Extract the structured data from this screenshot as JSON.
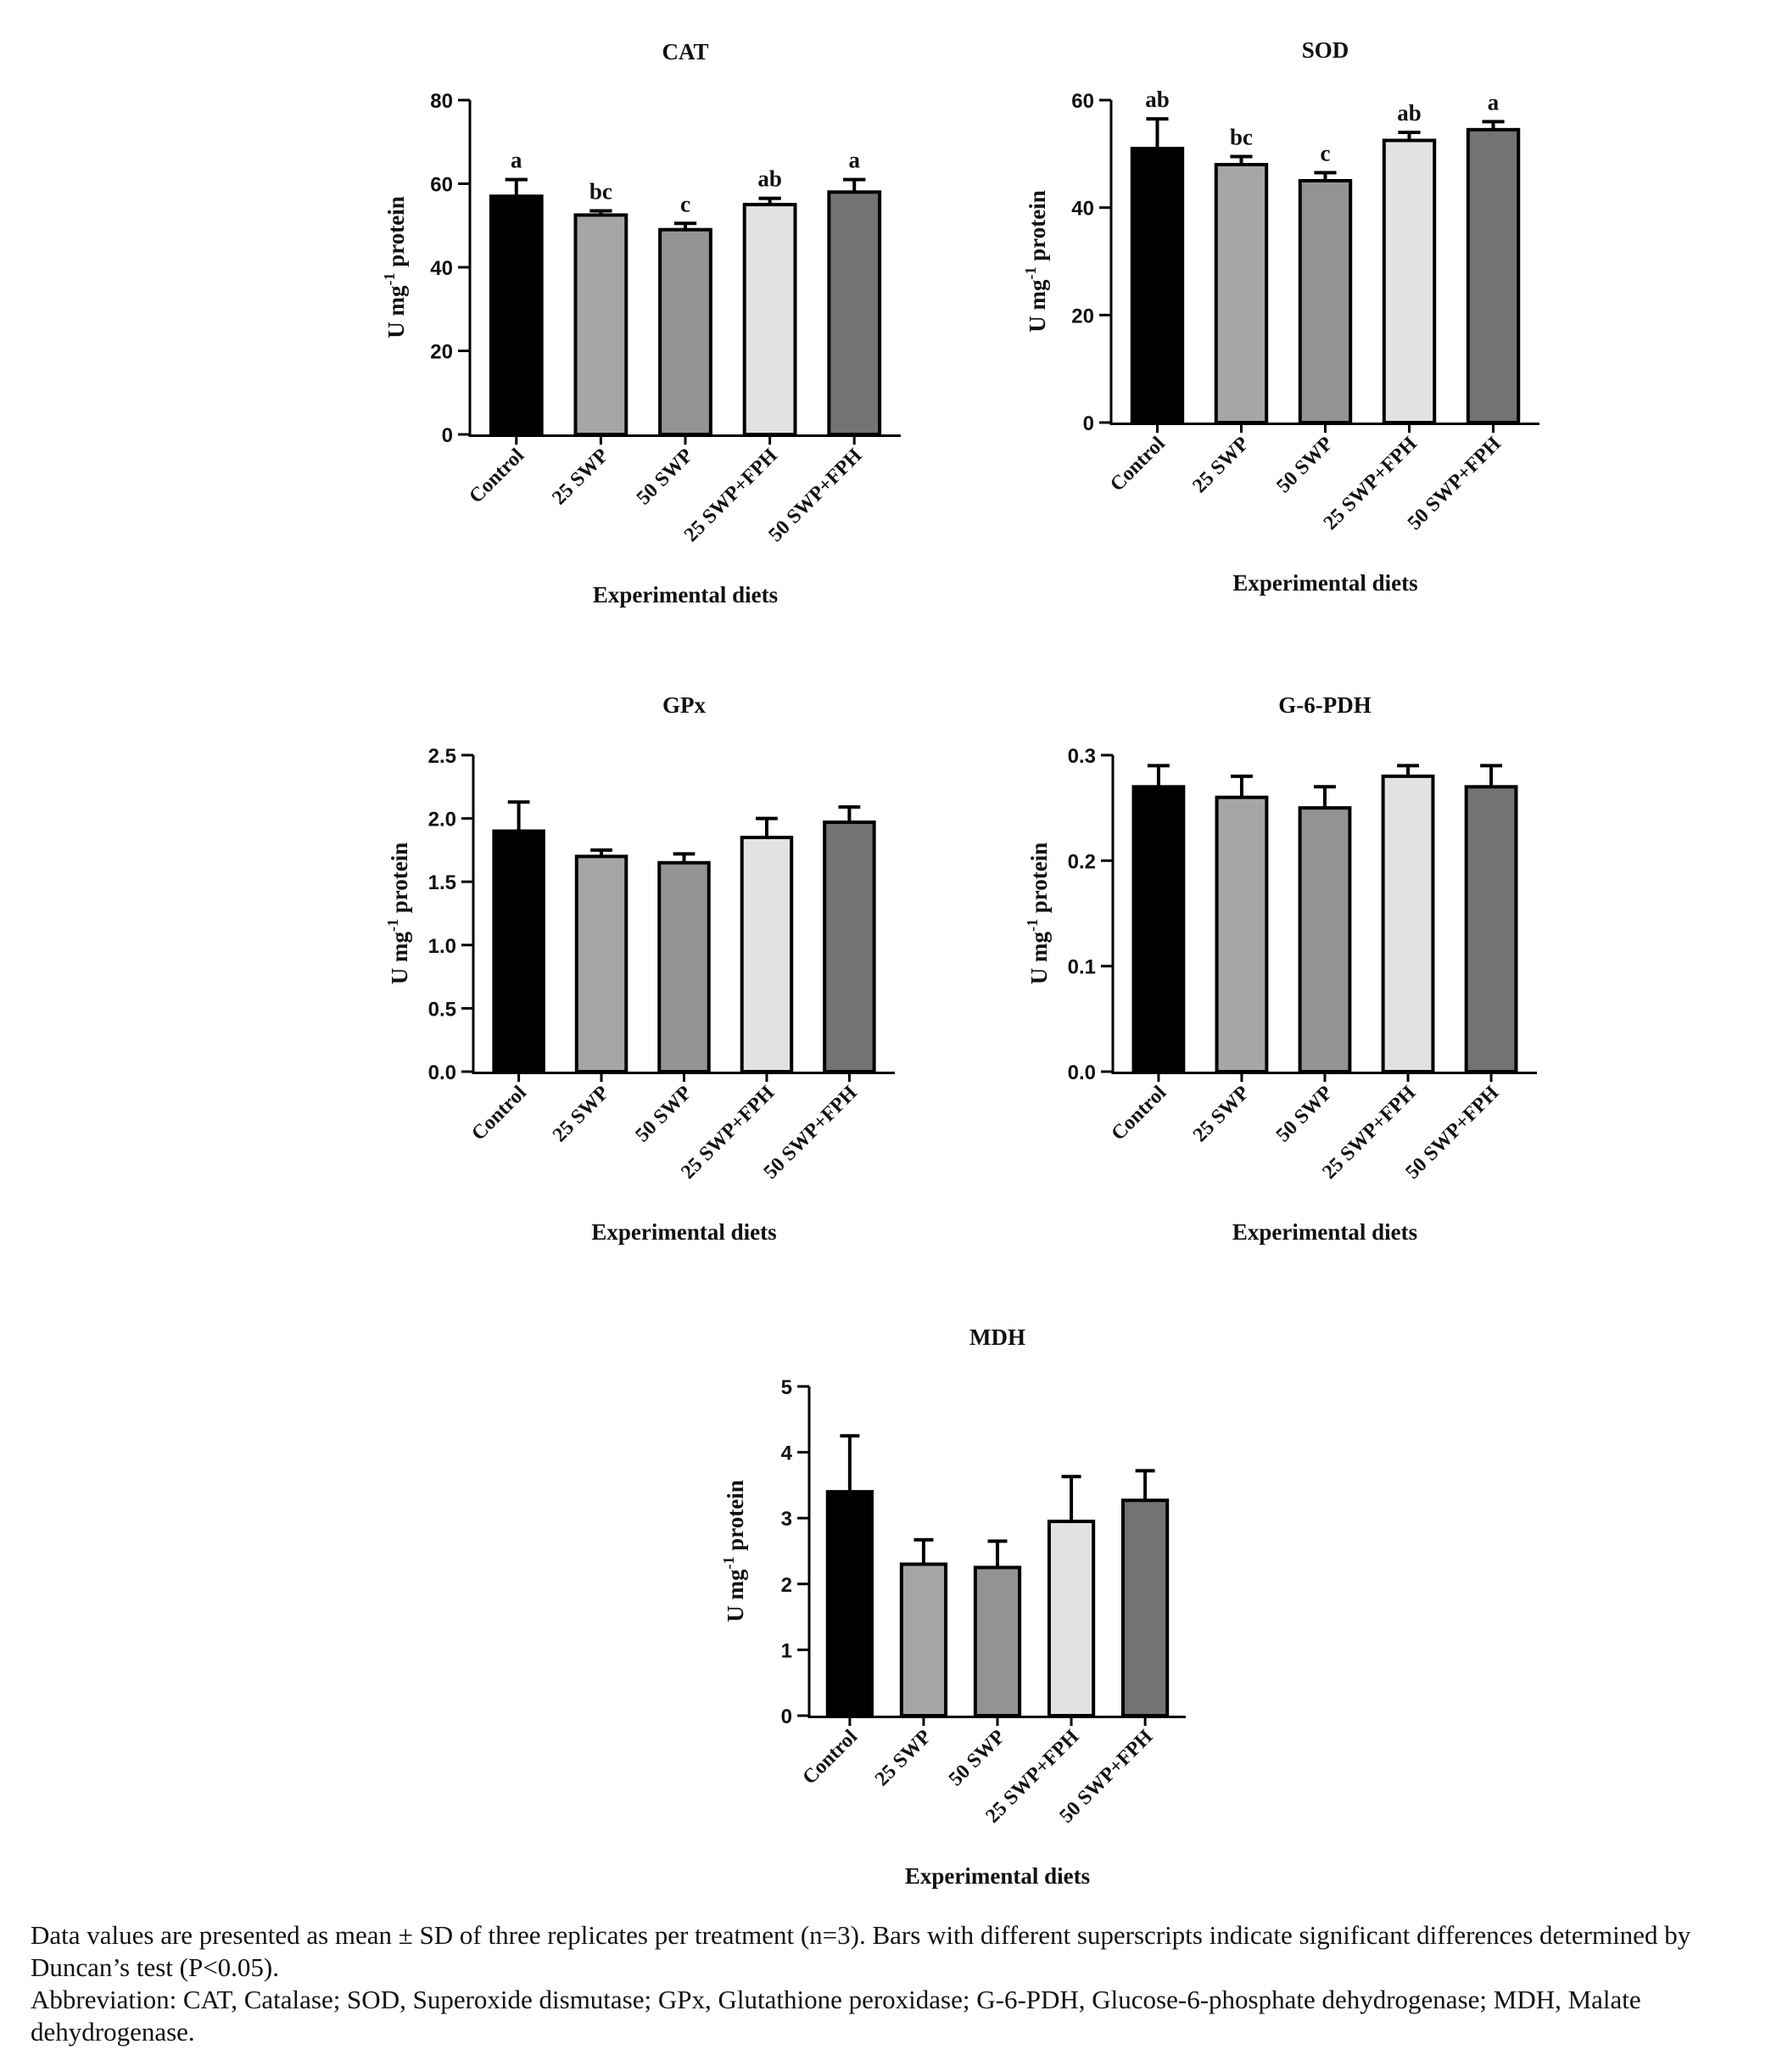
{
  "chart_data": [
    {
      "type": "bar",
      "title": "CAT",
      "xlabel": "Experimental diets",
      "ylabel": "U mg-1 protein",
      "ylabel_main": "U mg",
      "ylabel_sup": "-1",
      "ylabel_tail": " protein",
      "categories": [
        "Control",
        "25 SWP",
        "50 SWP",
        "25 SWP+FPH",
        "50 SWP+FPH"
      ],
      "values": [
        57,
        52.5,
        49,
        55,
        58
      ],
      "errors": [
        4,
        1,
        1.5,
        1.5,
        3
      ],
      "labels": [
        "a",
        "bc",
        "c",
        "ab",
        "a"
      ],
      "ylim": [
        0,
        80
      ],
      "yticks": [
        "0",
        "20",
        "40",
        "60",
        "80"
      ],
      "colors": [
        "#000000",
        "#a6a6a8",
        "#939393",
        "#e2e2e2",
        "#737373"
      ]
    },
    {
      "type": "bar",
      "title": "SOD",
      "xlabel": "Experimental diets",
      "ylabel": "U mg-1 protein",
      "ylabel_main": "U mg",
      "ylabel_sup": "-1",
      "ylabel_tail": " protein",
      "categories": [
        "Control",
        "25 SWP",
        "50 SWP",
        "25 SWP+FPH",
        "50 SWP+FPH"
      ],
      "values": [
        51,
        48,
        45,
        52.5,
        54.5
      ],
      "errors": [
        5.5,
        1.5,
        1.5,
        1.5,
        1.5
      ],
      "labels": [
        "ab",
        "bc",
        "c",
        "ab",
        "a"
      ],
      "ylim": [
        0,
        60
      ],
      "yticks": [
        "0",
        "20",
        "40",
        "60"
      ],
      "colors": [
        "#000000",
        "#a6a6a8",
        "#939393",
        "#e2e2e2",
        "#737373"
      ]
    },
    {
      "type": "bar",
      "title": "GPx",
      "xlabel": "Experimental diets",
      "ylabel": "U mg-1 protein",
      "ylabel_main": "U mg",
      "ylabel_sup": "-1",
      "ylabel_tail": " protein",
      "categories": [
        "Control",
        "25 SWP",
        "50 SWP",
        "25 SWP+FPH",
        "50 SWP+FPH"
      ],
      "values": [
        1.9,
        1.7,
        1.65,
        1.85,
        1.97
      ],
      "errors": [
        0.23,
        0.05,
        0.07,
        0.15,
        0.12
      ],
      "labels": [
        "",
        "",
        "",
        "",
        ""
      ],
      "ylim": [
        0,
        2.5
      ],
      "yticks": [
        "0.0",
        "0.5",
        "1.0",
        "1.5",
        "2.0",
        "2.5"
      ],
      "colors": [
        "#000000",
        "#a6a6a8",
        "#939393",
        "#e2e2e2",
        "#737373"
      ]
    },
    {
      "type": "bar",
      "title": "G-6-PDH",
      "xlabel": "Experimental diets",
      "ylabel": "U mg-1 protein",
      "ylabel_main": "U mg",
      "ylabel_sup": "-1",
      "ylabel_tail": " protein",
      "categories": [
        "Control",
        "25 SWP",
        "50 SWP",
        "25 SWP+FPH",
        "50 SWP+FPH"
      ],
      "values": [
        0.27,
        0.26,
        0.25,
        0.28,
        0.27
      ],
      "errors": [
        0.02,
        0.02,
        0.02,
        0.01,
        0.02
      ],
      "labels": [
        "",
        "",
        "",
        "",
        ""
      ],
      "ylim": [
        0,
        0.3
      ],
      "yticks": [
        "0.0",
        "0.1",
        "0.2",
        "0.3"
      ],
      "colors": [
        "#000000",
        "#a6a6a8",
        "#939393",
        "#e2e2e2",
        "#737373"
      ]
    },
    {
      "type": "bar",
      "title": "MDH",
      "xlabel": "Experimental diets",
      "ylabel": "U mg-1 protein",
      "ylabel_main": "U mg",
      "ylabel_sup": "-1",
      "ylabel_tail": " protein",
      "categories": [
        "Control",
        "25 SWP",
        "50 SWP",
        "25 SWP+FPH",
        "50 SWP+FPH"
      ],
      "values": [
        3.4,
        2.3,
        2.25,
        2.95,
        3.27
      ],
      "errors": [
        0.85,
        0.37,
        0.4,
        0.68,
        0.45
      ],
      "labels": [
        "",
        "",
        "",
        "",
        ""
      ],
      "ylim": [
        0,
        5
      ],
      "yticks": [
        "0",
        "1",
        "2",
        "3",
        "4",
        "5"
      ],
      "colors": [
        "#000000",
        "#a6a6a8",
        "#939393",
        "#e2e2e2",
        "#737373"
      ]
    }
  ],
  "caption": {
    "line1": "Data values are presented as mean ± SD of three replicates per treatment (n=3). Bars with different superscripts indicate significant differences determined by Duncan’s test (P<0.05).",
    "line2": "Abbreviation: CAT, Catalase; SOD, Superoxide dismutase; GPx, Glutathione peroxidase; G-6-PDH, Glucose-6-phosphate dehydrogenase; MDH, Malate dehydrogenase."
  }
}
